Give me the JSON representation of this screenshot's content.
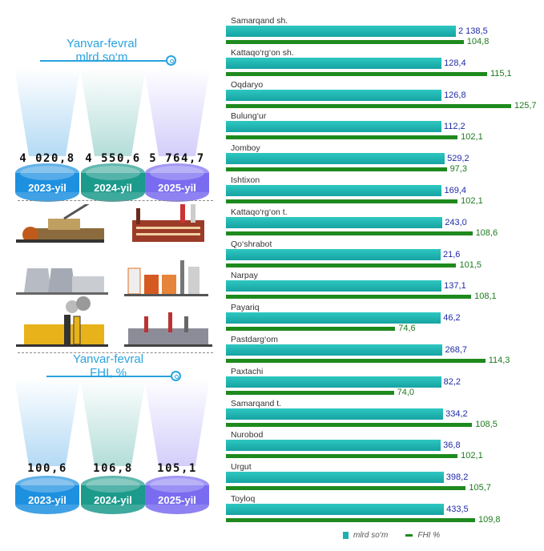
{
  "summary": {
    "top_caption": [
      "Yanvar-fevral",
      "mlrd so‘m"
    ],
    "bottom_caption": [
      "Yanvar-fevral",
      "FHI, %"
    ],
    "volume": [
      {
        "value": "4 020,8",
        "year": "2023-yil"
      },
      {
        "value": "4 550,6",
        "year": "2024-yil"
      },
      {
        "value": "5 764,7",
        "year": "2025-yil"
      }
    ],
    "index": [
      {
        "value": "100,6",
        "year": "2023-yil"
      },
      {
        "value": "106,8",
        "year": "2024-yil"
      },
      {
        "value": "105,1",
        "year": "2025-yil"
      }
    ]
  },
  "colors": {
    "blue": "#1e90e0",
    "teal": "#1c9a8c",
    "purple": "#7a6cf0",
    "bar_teal": "#19b2b0",
    "bar_green": "#1e8a1e"
  },
  "chart_data": {
    "type": "bar",
    "orientation": "horizontal",
    "categories": [
      "Samarqand sh.",
      "Kattaqo‘rg‘on sh.",
      "Oqdaryo",
      "Bulung‘ur",
      "Jomboy",
      "Ishtixon",
      "Kattaqo‘rg‘on t.",
      "Qo‘shrabot",
      "Narpay",
      "Payariq",
      "Pastdarg‘om",
      "Paxtachi",
      "Samarqand t.",
      "Nurobod",
      "Urgut",
      "Toyloq"
    ],
    "series": [
      {
        "name": "mlrd so‘m",
        "values": [
          2138.5,
          128.4,
          126.8,
          112.2,
          529.2,
          169.4,
          243.0,
          21.6,
          137.1,
          46.2,
          268.7,
          82.2,
          334.2,
          36.8,
          398.2,
          433.5
        ],
        "labels": [
          "2 138,5",
          "128,4",
          "126,8",
          "112,2",
          "529,2",
          "169,4",
          "243,0",
          "21,6",
          "137,1",
          "46,2",
          "268,7",
          "82,2",
          "334,2",
          "36,8",
          "398,2",
          "433,5"
        ]
      },
      {
        "name": "FHI %",
        "values": [
          104.8,
          115.1,
          125.7,
          102.1,
          97.3,
          102.1,
          108.6,
          101.5,
          108.1,
          74.6,
          114.3,
          74.0,
          108.5,
          102.1,
          105.7,
          109.8
        ],
        "labels": [
          "104,8",
          "115,1",
          "125,7",
          "102,1",
          "97,3",
          "102,1",
          "108,6",
          "101,5",
          "108,1",
          "74,6",
          "114,3",
          "74,0",
          "108,5",
          "102,1",
          "105,7",
          "109,8"
        ]
      }
    ],
    "legend": "bottom"
  }
}
